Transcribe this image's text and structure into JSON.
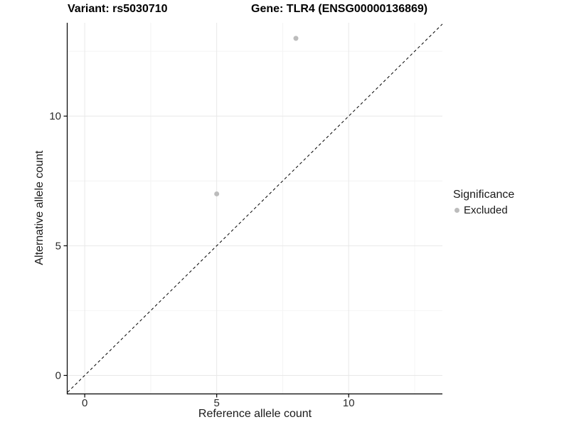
{
  "chart_data": {
    "type": "scatter",
    "title_left": "Variant: rs5030710",
    "title_right": "Gene: TLR4 (ENSG00000136869)",
    "xlabel": "Reference allele count",
    "ylabel": "Alternative allele count",
    "xlim": [
      -0.65,
      13.55
    ],
    "ylim": [
      -0.7,
      13.6
    ],
    "x_major_ticks": [
      0,
      5,
      10
    ],
    "y_major_ticks": [
      0,
      5,
      10
    ],
    "x_minor_gridlines": [
      2.5,
      7.5,
      12.5
    ],
    "y_minor_gridlines": [
      2.5,
      7.5,
      12.5
    ],
    "grid": true,
    "series": [
      {
        "name": "Excluded",
        "color": "#bcbcbc",
        "points": [
          {
            "x": 5,
            "y": 7
          },
          {
            "x": 8,
            "y": 13
          }
        ]
      }
    ],
    "reference_line": {
      "kind": "identity y=x",
      "style": "dashed",
      "color": "#000000"
    },
    "legend": {
      "title": "Significance",
      "position": "right",
      "items": [
        {
          "label": "Excluded",
          "color": "#bcbcbc",
          "marker": "circle"
        }
      ]
    },
    "colors": {
      "major_grid": "#e8e8e8",
      "minor_grid": "#f4f4f4",
      "axis_line": "#000000",
      "text": "#1a1a1a"
    }
  }
}
